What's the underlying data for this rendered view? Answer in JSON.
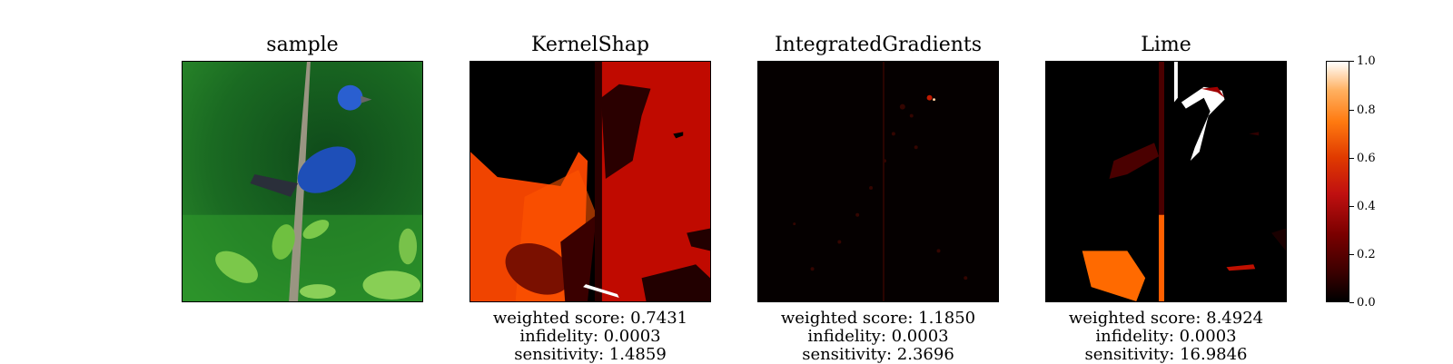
{
  "panels": [
    {
      "title": "sample",
      "image": "indigo-bunting-photo"
    },
    {
      "title": "KernelShap",
      "image": "kernelshap-heatmap",
      "metrics": {
        "weighted": "weighted score: 0.7431",
        "infidelity": "infidelity: 0.0003",
        "sensitivity": "sensitivity: 1.4859"
      }
    },
    {
      "title": "IntegratedGradients",
      "image": "integratedgradients-heatmap",
      "metrics": {
        "weighted": "weighted score: 1.1850",
        "infidelity": "infidelity: 0.0003",
        "sensitivity": "sensitivity: 2.3696"
      }
    },
    {
      "title": "Lime",
      "image": "lime-heatmap",
      "metrics": {
        "weighted": "weighted score: 8.4924",
        "infidelity": "infidelity: 0.0003",
        "sensitivity": "sensitivity: 16.9846"
      }
    }
  ],
  "colorbar": {
    "ticks": [
      "0.0",
      "0.2",
      "0.4",
      "0.6",
      "0.8",
      "1.0"
    ],
    "colormap": [
      "#000000",
      "#7a0000",
      "#c01010",
      "#ff7a10",
      "#ffffff"
    ]
  }
}
